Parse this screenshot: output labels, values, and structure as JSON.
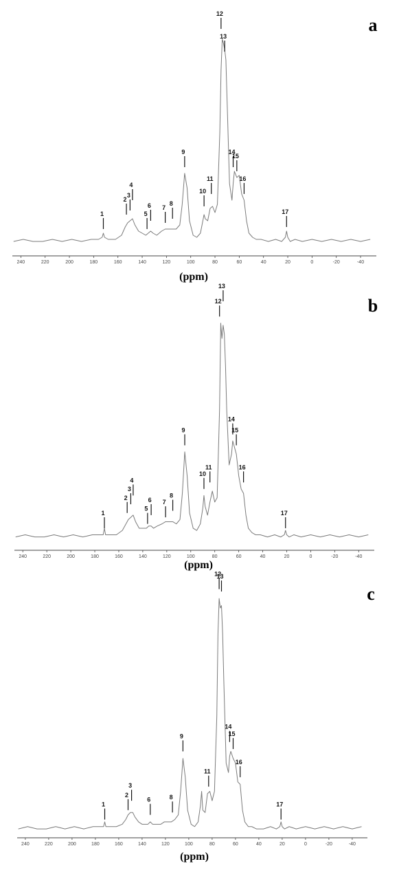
{
  "chart_data": [
    {
      "type": "line",
      "panel_label": "a",
      "x_label": "(ppm)",
      "xlim": [
        247,
        -53
      ],
      "ylim": [
        0,
        110
      ],
      "xticks": [
        240,
        220,
        200,
        180,
        160,
        140,
        120,
        100,
        80,
        60,
        40,
        20,
        0,
        -20,
        -40
      ],
      "x": [
        246,
        238,
        230,
        222,
        214,
        206,
        198,
        190,
        182,
        176,
        173,
        172,
        171,
        168,
        162,
        157,
        154,
        152,
        150,
        148,
        146,
        143,
        140,
        137,
        135,
        133,
        131,
        128,
        124,
        121,
        118,
        115,
        112,
        109,
        107,
        105,
        103,
        101,
        98,
        95,
        92,
        90,
        89,
        88,
        86,
        84,
        82,
        80,
        78,
        76,
        75,
        74,
        73,
        72,
        71,
        70,
        68,
        66,
        65,
        64,
        62,
        60,
        58,
        56,
        54,
        52,
        49,
        46,
        42,
        36,
        30,
        25,
        22,
        21,
        20,
        18,
        14,
        8,
        0,
        -8,
        -16,
        -24,
        -32,
        -40,
        -48
      ],
      "series": [
        {
          "color": "#7a7a7a",
          "values": [
            2,
            3,
            2,
            2,
            3,
            2,
            3,
            2,
            3,
            3,
            4,
            6,
            4,
            3,
            3,
            5,
            9,
            11,
            12,
            13,
            10,
            7,
            6,
            5,
            6,
            7,
            6,
            5,
            7,
            8,
            8,
            8,
            8,
            10,
            20,
            35,
            28,
            12,
            5,
            4,
            6,
            12,
            15,
            13,
            12,
            18,
            19,
            16,
            20,
            55,
            85,
            100,
            98,
            95,
            90,
            70,
            30,
            22,
            30,
            36,
            33,
            34,
            25,
            22,
            12,
            6,
            4,
            3,
            3,
            2,
            3,
            2,
            4,
            7,
            4,
            2,
            3,
            2,
            3,
            2,
            3,
            2,
            3,
            2,
            3
          ]
        }
      ],
      "annotations": [
        {
          "label": "1",
          "x": 172,
          "y": 8
        },
        {
          "label": "2",
          "x": 153,
          "y": 15
        },
        {
          "label": "3",
          "x": 150,
          "y": 17
        },
        {
          "label": "4",
          "x": 148,
          "y": 22
        },
        {
          "label": "5",
          "x": 136,
          "y": 8
        },
        {
          "label": "6",
          "x": 133,
          "y": 12
        },
        {
          "label": "7",
          "x": 121,
          "y": 11
        },
        {
          "label": "8",
          "x": 115,
          "y": 13
        },
        {
          "label": "9",
          "x": 105,
          "y": 38
        },
        {
          "label": "10",
          "x": 89,
          "y": 19
        },
        {
          "label": "11",
          "x": 83,
          "y": 25
        },
        {
          "label": "12",
          "x": 75,
          "y": 105
        },
        {
          "label": "13",
          "x": 72,
          "y": 94
        },
        {
          "label": "14",
          "x": 65,
          "y": 38
        },
        {
          "label": "15",
          "x": 62,
          "y": 36
        },
        {
          "label": "16",
          "x": 56,
          "y": 25
        },
        {
          "label": "17",
          "x": 21,
          "y": 9
        }
      ]
    },
    {
      "type": "line",
      "panel_label": "b",
      "x_label": "(ppm)",
      "xlim": [
        247,
        -53
      ],
      "ylim": [
        0,
        110
      ],
      "xticks": [
        240,
        220,
        200,
        180,
        160,
        140,
        120,
        100,
        80,
        60,
        40,
        20,
        0,
        -20,
        -40
      ],
      "x": [
        246,
        238,
        230,
        222,
        214,
        206,
        198,
        190,
        182,
        176,
        173,
        172,
        171,
        168,
        162,
        157,
        154,
        152,
        150,
        148,
        146,
        143,
        140,
        137,
        135,
        133,
        131,
        128,
        124,
        121,
        118,
        115,
        112,
        109,
        107,
        105,
        103,
        101,
        98,
        95,
        92,
        90,
        89,
        88,
        86,
        84,
        82,
        80,
        78,
        76,
        75,
        74,
        73,
        72,
        71,
        70,
        68,
        66,
        65,
        64,
        62,
        60,
        58,
        56,
        54,
        52,
        49,
        46,
        42,
        36,
        30,
        25,
        22,
        21,
        20,
        18,
        14,
        8,
        0,
        -8,
        -16,
        -24,
        -32,
        -40,
        -48
      ],
      "series": [
        {
          "color": "#7a7a7a",
          "values": [
            2,
            3,
            2,
            2,
            3,
            2,
            3,
            2,
            3,
            3,
            3,
            6,
            3,
            3,
            3,
            5,
            8,
            10,
            11,
            12,
            9,
            6,
            6,
            6,
            7,
            7,
            6,
            7,
            8,
            9,
            9,
            9,
            8,
            10,
            22,
            41,
            30,
            13,
            6,
            5,
            8,
            15,
            21,
            16,
            12,
            18,
            23,
            18,
            20,
            60,
            100,
            93,
            99,
            95,
            80,
            60,
            35,
            40,
            46,
            44,
            40,
            30,
            24,
            22,
            12,
            6,
            4,
            3,
            3,
            2,
            3,
            2,
            3,
            5,
            3,
            2,
            3,
            2,
            3,
            2,
            3,
            2,
            3,
            2,
            3
          ]
        }
      ],
      "annotations": [
        {
          "label": "1",
          "x": 172,
          "y": 6
        },
        {
          "label": "2",
          "x": 153,
          "y": 13
        },
        {
          "label": "3",
          "x": 150,
          "y": 17
        },
        {
          "label": "4",
          "x": 148,
          "y": 21
        },
        {
          "label": "5",
          "x": 136,
          "y": 8
        },
        {
          "label": "6",
          "x": 133,
          "y": 12
        },
        {
          "label": "7",
          "x": 121,
          "y": 11
        },
        {
          "label": "8",
          "x": 115,
          "y": 14
        },
        {
          "label": "9",
          "x": 105,
          "y": 44
        },
        {
          "label": "10",
          "x": 89,
          "y": 24
        },
        {
          "label": "11",
          "x": 84,
          "y": 27
        },
        {
          "label": "12",
          "x": 76,
          "y": 103
        },
        {
          "label": "13",
          "x": 73,
          "y": 110
        },
        {
          "label": "14",
          "x": 65,
          "y": 49
        },
        {
          "label": "15",
          "x": 62,
          "y": 44
        },
        {
          "label": "16",
          "x": 56,
          "y": 27
        },
        {
          "label": "17",
          "x": 21,
          "y": 6
        }
      ]
    },
    {
      "type": "line",
      "panel_label": "c",
      "x_label": "(ppm)",
      "xlim": [
        247,
        -53
      ],
      "ylim": [
        0,
        110
      ],
      "xticks": [
        240,
        220,
        200,
        180,
        160,
        140,
        120,
        100,
        80,
        60,
        40,
        20,
        0,
        -20,
        -40
      ],
      "x": [
        246,
        238,
        230,
        222,
        214,
        206,
        198,
        190,
        182,
        176,
        173,
        172,
        171,
        168,
        162,
        157,
        154,
        152,
        150,
        148,
        146,
        143,
        140,
        137,
        135,
        133,
        131,
        128,
        124,
        121,
        118,
        115,
        112,
        109,
        107,
        105,
        103,
        101,
        98,
        95,
        92,
        90,
        89,
        88,
        86,
        84,
        82,
        80,
        78,
        76,
        75,
        74,
        73,
        72,
        71,
        70,
        68,
        66,
        65,
        64,
        62,
        60,
        58,
        56,
        54,
        52,
        49,
        46,
        42,
        36,
        30,
        25,
        22,
        21,
        20,
        18,
        14,
        8,
        0,
        -8,
        -16,
        -24,
        -32,
        -40,
        -48
      ],
      "series": [
        {
          "color": "#7a7a7a",
          "values": [
            2,
            3,
            2,
            2,
            3,
            2,
            3,
            2,
            3,
            3,
            3,
            5,
            3,
            3,
            3,
            4,
            6,
            8,
            9,
            9,
            7,
            5,
            4,
            4,
            4,
            5,
            4,
            4,
            4,
            5,
            5,
            5,
            6,
            8,
            18,
            32,
            24,
            10,
            4,
            3,
            5,
            12,
            18,
            10,
            9,
            17,
            18,
            14,
            18,
            50,
            85,
            100,
            96,
            97,
            85,
            65,
            30,
            26,
            33,
            35,
            32,
            30,
            22,
            21,
            10,
            5,
            3,
            3,
            2,
            2,
            3,
            2,
            3,
            5,
            3,
            2,
            3,
            2,
            3,
            2,
            3,
            2,
            3,
            2,
            3
          ]
        }
      ],
      "annotations": [
        {
          "label": "1",
          "x": 172,
          "y": 6
        },
        {
          "label": "2",
          "x": 152,
          "y": 10
        },
        {
          "label": "3",
          "x": 149,
          "y": 14
        },
        {
          "label": "6",
          "x": 133,
          "y": 8
        },
        {
          "label": "8",
          "x": 114,
          "y": 9
        },
        {
          "label": "9",
          "x": 105,
          "y": 35
        },
        {
          "label": "11",
          "x": 83,
          "y": 20
        },
        {
          "label": "12",
          "x": 74,
          "y": 104
        },
        {
          "label": "13",
          "x": 72,
          "y": 103
        },
        {
          "label": "14",
          "x": 65,
          "y": 39
        },
        {
          "label": "15",
          "x": 62,
          "y": 36
        },
        {
          "label": "16",
          "x": 56,
          "y": 24
        },
        {
          "label": "17",
          "x": 21,
          "y": 6
        }
      ]
    }
  ]
}
